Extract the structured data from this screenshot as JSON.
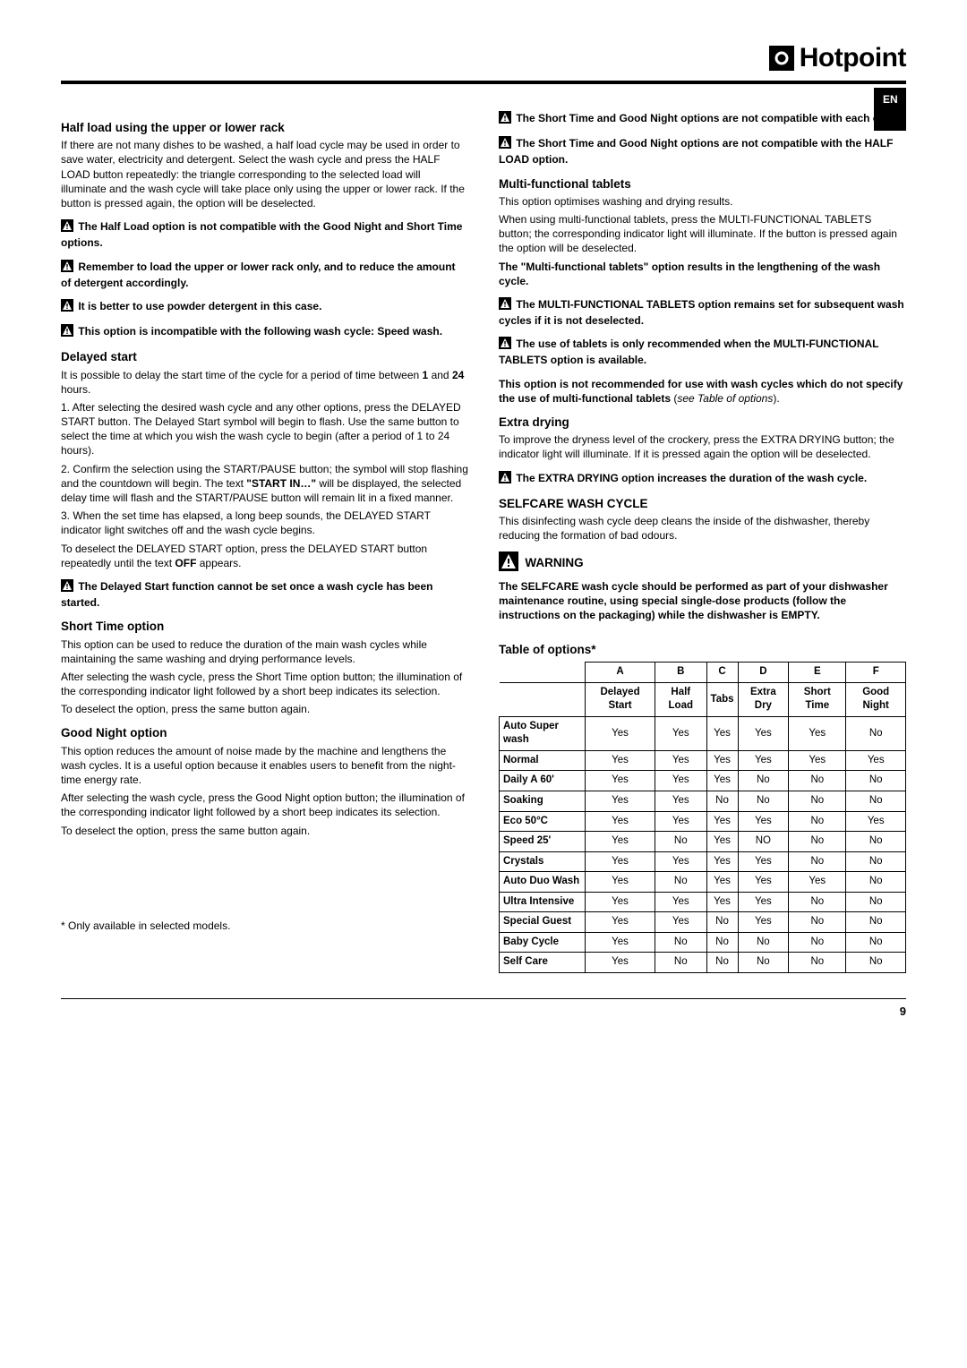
{
  "brand": {
    "icon_glyph": "◦",
    "name": "Hotpoint"
  },
  "lang_badge": "EN",
  "left": {
    "h_half_load": "Half load using the upper or lower rack",
    "p_half_load": "If there are not many dishes to be washed, a half load cycle may be used in order to save water, electricity and detergent. Select the wash cycle and press the HALF LOAD button repeatedly: the triangle corresponding to the selected load will illuminate and the wash cycle will take place only using the upper or lower rack. If the button is pressed again, the option will be deselected.",
    "warn_half_1": "The Half Load option is not compatible with the Good Night and Short Time options.",
    "warn_half_2": "Remember to load the upper or lower rack only, and to reduce the amount of detergent accordingly.",
    "warn_half_3": "It is better to use powder detergent in this case.",
    "warn_half_4": "This option is incompatible with the following wash cycle: Speed wash.",
    "h_delayed": "Delayed start",
    "p_delayed_1a": "It is possible to delay the start time of the cycle for a period of time between ",
    "p_delayed_1b": "1",
    "p_delayed_1c": " and ",
    "p_delayed_1d": "24",
    "p_delayed_1e": " hours.",
    "p_delayed_2": "1. After selecting the desired wash cycle and any other options, press the DELAYED START button. The Delayed Start symbol will begin to flash. Use the same button to select the time at which you wish the wash cycle to begin (after a period of 1 to 24 hours).",
    "p_delayed_3a": "2. Confirm the selection using the START/PAUSE button; the symbol will stop flashing and the countdown will begin. The text ",
    "p_delayed_3b": "\"START IN…\"",
    "p_delayed_3c": " will be displayed, the selected delay time will flash and the START/PAUSE button will remain lit in a fixed manner.",
    "p_delayed_4": "3. When the set time has elapsed, a long beep sounds, the DELAYED START indicator light switches off and the wash cycle begins.",
    "p_delayed_5a": "To deselect the DELAYED START option, press the DELAYED START button repeatedly until the text ",
    "p_delayed_5b": "OFF",
    "p_delayed_5c": " appears.",
    "warn_delayed": "The Delayed Start function cannot be set once a wash cycle has been started.",
    "h_short": "Short Time option",
    "p_short_1": "This option can be used to reduce the duration of the main wash cycles while maintaining the same washing and drying performance levels.",
    "p_short_2": "After selecting the wash cycle, press the Short Time option button; the illumination of the corresponding indicator light followed by a short beep indicates its selection.",
    "p_short_3": "To deselect the option, press the same button again.",
    "h_good_night": "Good Night option",
    "p_gn_1": "This option reduces the amount of noise made by the machine and lengthens the wash cycles. It is a useful option because it enables users to benefit from the night-time energy rate.",
    "p_gn_2": "After selecting the wash cycle, press the Good Night option button; the illumination of the corresponding indicator light followed by a short beep indicates its selection.",
    "p_gn_3": "To deselect the option, press the same button again.",
    "footnote": "* Only available in selected models."
  },
  "right": {
    "warn_st_gn": "The Short Time and Good Night options are not compatible with each other.",
    "warn_st_gn_half": "The Short Time and Good Night options are not compatible with the HALF LOAD option.",
    "h_multi": "Multi-functional tablets",
    "p_multi_1": "This option optimises washing and drying results.",
    "p_multi_2": "When using multi-functional tablets, press the MULTI-FUNCTIONAL TABLETS button; the corresponding indicator light will illuminate. If the button is pressed again the option will be deselected.",
    "p_multi_3": "The \"Multi-functional tablets\" option results in the lengthening of the wash cycle.",
    "warn_multi_1": "The MULTI-FUNCTIONAL TABLETS option remains set for subsequent wash cycles if it is not deselected.",
    "warn_multi_2": "The use of tablets is only recommended when the MULTI-FUNCTIONAL TABLETS option is available.",
    "p_multi_4a": "This option is not recommended for use with wash cycles which do not specify the use of multi-functional tablets",
    "p_multi_4b": "see Table of options",
    "h_extra": "Extra drying",
    "p_extra_1": "To improve the dryness level of the crockery, press the EXTRA DRYING button; the indicator light will illuminate. If it is pressed again the option will be deselected.",
    "warn_extra": "The EXTRA DRYING option increases the duration of the wash cycle.",
    "h_selfcare": "SELFCARE WASH CYCLE",
    "p_selfcare_1": "This disinfecting wash cycle deep cleans the inside of the dishwasher, thereby reducing the formation of bad odours.",
    "h_warning": "WARNING",
    "p_warning": "The SELFCARE wash cycle should be performed as part of your dishwasher maintenance routine, using special single-dose products (follow the instructions on the packaging) while the dishwasher is EMPTY.",
    "h_table": "Table of options*"
  },
  "table": {
    "head_top": [
      "",
      "A",
      "B",
      "C",
      "D",
      "E",
      "F"
    ],
    "head_sub": [
      "",
      "Delayed Start",
      "Half Load",
      "Tabs",
      "Extra Dry",
      "Short Time",
      "Good Night"
    ],
    "rows": [
      [
        "Auto Super wash",
        "Yes",
        "Yes",
        "Yes",
        "Yes",
        "Yes",
        "No"
      ],
      [
        "Normal",
        "Yes",
        "Yes",
        "Yes",
        "Yes",
        "Yes",
        "Yes"
      ],
      [
        "Daily A 60'",
        "Yes",
        "Yes",
        "Yes",
        "No",
        "No",
        "No"
      ],
      [
        "Soaking",
        "Yes",
        "Yes",
        "No",
        "No",
        "No",
        "No"
      ],
      [
        "Eco 50°C",
        "Yes",
        "Yes",
        "Yes",
        "Yes",
        "No",
        "Yes"
      ],
      [
        "Speed 25'",
        "Yes",
        "No",
        "Yes",
        "NO",
        "No",
        "No"
      ],
      [
        "Crystals",
        "Yes",
        "Yes",
        "Yes",
        "Yes",
        "No",
        "No"
      ],
      [
        "Auto Duo Wash",
        "Yes",
        "No",
        "Yes",
        "Yes",
        "Yes",
        "No"
      ],
      [
        "Ultra Intensive",
        "Yes",
        "Yes",
        "Yes",
        "Yes",
        "No",
        "No"
      ],
      [
        "Special Guest",
        "Yes",
        "Yes",
        "No",
        "Yes",
        "No",
        "No"
      ],
      [
        "Baby Cycle",
        "Yes",
        "No",
        "No",
        "No",
        "No",
        "No"
      ],
      [
        "Self Care",
        "Yes",
        "No",
        "No",
        "No",
        "No",
        "No"
      ]
    ]
  },
  "page_number": "9"
}
